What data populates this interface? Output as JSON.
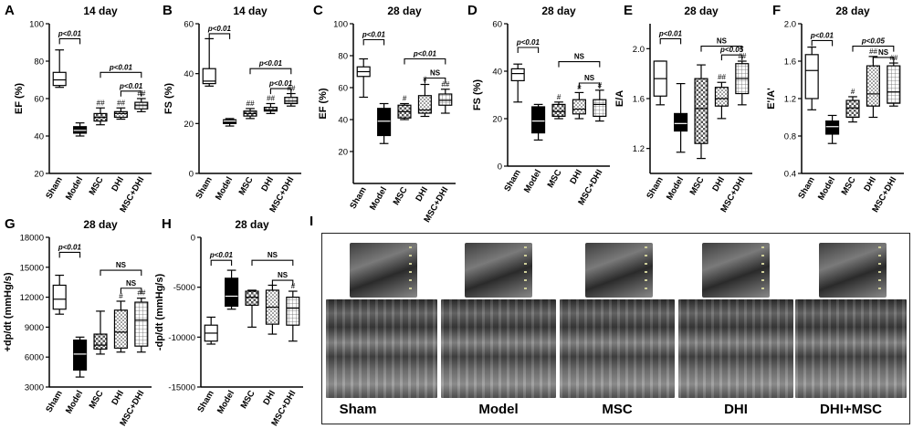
{
  "chart_data": [
    {
      "panel": "A",
      "title": "14 day",
      "type": "box",
      "ylabel": "EF (%)",
      "ylim": [
        20,
        100
      ],
      "yticks": [
        20,
        40,
        60,
        80,
        100
      ],
      "categories": [
        "Sham",
        "Model",
        "MSC",
        "DHI",
        "MSC+DHI"
      ],
      "boxes": [
        {
          "min": 66,
          "q1": 67,
          "median": 70,
          "q3": 74,
          "max": 86
        },
        {
          "min": 40,
          "q1": 41.5,
          "median": 43,
          "q3": 45,
          "max": 47
        },
        {
          "min": 46,
          "q1": 48,
          "median": 50,
          "q3": 52,
          "max": 55
        },
        {
          "min": 49,
          "q1": 50,
          "median": 52,
          "q3": 53,
          "max": 55
        },
        {
          "min": 53,
          "q1": 54.5,
          "median": 56.5,
          "q3": 58,
          "max": 60
        }
      ],
      "marks": [
        "",
        "",
        "##",
        "##",
        "##"
      ],
      "brackets": [
        {
          "from": 0,
          "to": 1,
          "y": 92,
          "label": "p<0.01"
        },
        {
          "from": 2,
          "to": 4,
          "y": 74,
          "label": "p<0.01"
        },
        {
          "from": 3,
          "to": 4,
          "y": 64,
          "label": "p<0.01"
        }
      ]
    },
    {
      "panel": "B",
      "title": "14 day",
      "type": "box",
      "ylabel": "FS (%)",
      "ylim": [
        0,
        60
      ],
      "yticks": [
        0,
        20,
        40,
        60
      ],
      "categories": [
        "Sham",
        "Model",
        "MSC",
        "DHI",
        "MSC+DHI"
      ],
      "boxes": [
        {
          "min": 35,
          "q1": 36,
          "median": 37,
          "q3": 42,
          "max": 54
        },
        {
          "min": 19,
          "q1": 20,
          "median": 21,
          "q3": 21.5,
          "max": 22
        },
        {
          "min": 22,
          "q1": 23,
          "median": 24,
          "q3": 25,
          "max": 26
        },
        {
          "min": 24,
          "q1": 25,
          "median": 25.5,
          "q3": 26.5,
          "max": 28
        },
        {
          "min": 27,
          "q1": 28,
          "median": 29,
          "q3": 30.5,
          "max": 32
        }
      ],
      "marks": [
        "",
        "",
        "##",
        "##",
        "##"
      ],
      "brackets": [
        {
          "from": 0,
          "to": 1,
          "y": 56,
          "label": "p<0.01"
        },
        {
          "from": 2,
          "to": 4,
          "y": 42,
          "label": "p<0.01"
        },
        {
          "from": 3,
          "to": 4,
          "y": 34,
          "label": "p<0.01"
        }
      ]
    },
    {
      "panel": "C",
      "title": "28 day",
      "type": "box",
      "ylabel": "EF (%)",
      "ylim": [
        0,
        100
      ],
      "yticks": [
        20,
        40,
        60,
        80,
        100
      ],
      "categories": [
        "Sham",
        "Model",
        "MSC",
        "DHI",
        "MSC+DHI"
      ],
      "boxes": [
        {
          "min": 54,
          "q1": 67,
          "median": 70,
          "q3": 73,
          "max": 78
        },
        {
          "min": 25,
          "q1": 30,
          "median": 39,
          "q3": 47,
          "max": 50
        },
        {
          "min": 40,
          "q1": 41,
          "median": 45,
          "q3": 49,
          "max": 50
        },
        {
          "min": 42,
          "q1": 44,
          "median": 46,
          "q3": 55,
          "max": 62
        },
        {
          "min": 44,
          "q1": 49,
          "median": 52,
          "q3": 56,
          "max": 59
        }
      ],
      "marks": [
        "",
        "",
        "#",
        "#",
        "##"
      ],
      "brackets": [
        {
          "from": 0,
          "to": 1,
          "y": 90,
          "label": "p<0.01"
        },
        {
          "from": 2,
          "to": 4,
          "y": 78,
          "label": "p<0.01"
        },
        {
          "from": 3,
          "to": 4,
          "y": 66,
          "label": "NS"
        }
      ]
    },
    {
      "panel": "D",
      "title": "28 day",
      "type": "box",
      "ylabel": "FS (%)",
      "ylim": [
        0,
        60
      ],
      "yticks": [
        0,
        20,
        40,
        60
      ],
      "categories": [
        "Sham",
        "Model",
        "MSC",
        "DHI",
        "MSC+DHI"
      ],
      "boxes": [
        {
          "min": 27,
          "q1": 36,
          "median": 39,
          "q3": 41,
          "max": 43
        },
        {
          "min": 11,
          "q1": 14,
          "median": 19,
          "q3": 25,
          "max": 26
        },
        {
          "min": 20,
          "q1": 21,
          "median": 23,
          "q3": 26,
          "max": 27
        },
        {
          "min": 20,
          "q1": 22,
          "median": 24,
          "q3": 28,
          "max": 31
        },
        {
          "min": 19,
          "q1": 21,
          "median": 26,
          "q3": 28,
          "max": 32
        }
      ],
      "marks": [
        "",
        "",
        "#",
        "#",
        "#"
      ],
      "brackets": [
        {
          "from": 0,
          "to": 1,
          "y": 50,
          "label": "p<0.01"
        },
        {
          "from": 2,
          "to": 4,
          "y": 44,
          "label": "NS"
        },
        {
          "from": 3,
          "to": 4,
          "y": 35,
          "label": "NS"
        }
      ]
    },
    {
      "panel": "E",
      "title": "28 day",
      "type": "box",
      "ylabel": "E/A",
      "ylim": [
        1.0,
        2.2
      ],
      "yticks": [
        1.2,
        1.6,
        2.0
      ],
      "categories": [
        "Sham",
        "Model",
        "MSC",
        "DHI",
        "MSC+DHI"
      ],
      "boxes": [
        {
          "min": 1.55,
          "q1": 1.62,
          "median": 1.76,
          "q3": 1.9,
          "max": 1.9
        },
        {
          "min": 1.17,
          "q1": 1.34,
          "median": 1.4,
          "q3": 1.48,
          "max": 1.72
        },
        {
          "min": 1.12,
          "q1": 1.24,
          "median": 1.52,
          "q3": 1.76,
          "max": 1.87
        },
        {
          "min": 1.44,
          "q1": 1.54,
          "median": 1.6,
          "q3": 1.69,
          "max": 1.73
        },
        {
          "min": 1.55,
          "q1": 1.64,
          "median": 1.76,
          "q3": 1.88,
          "max": 1.9
        }
      ],
      "marks": [
        "",
        "",
        "",
        "##",
        "##"
      ],
      "brackets": [
        {
          "from": 0,
          "to": 1,
          "y": 2.08,
          "label": "p<0.01"
        },
        {
          "from": 2,
          "to": 4,
          "y": 2.02,
          "label": "NS"
        },
        {
          "from": 3,
          "to": 4,
          "y": 1.95,
          "label": "p<0.05"
        }
      ]
    },
    {
      "panel": "F",
      "title": "28 day",
      "type": "box",
      "ylabel": "E'/A'",
      "ylim": [
        0.4,
        2.0
      ],
      "yticks": [
        0.4,
        0.8,
        1.2,
        1.6,
        2.0
      ],
      "categories": [
        "Sham",
        "Model",
        "MSC",
        "DHI",
        "MSC+DHI"
      ],
      "boxes": [
        {
          "min": 1.08,
          "q1": 1.2,
          "median": 1.5,
          "q3": 1.67,
          "max": 1.75
        },
        {
          "min": 0.72,
          "q1": 0.82,
          "median": 0.9,
          "q3": 0.96,
          "max": 1.02
        },
        {
          "min": 0.95,
          "q1": 1.0,
          "median": 1.1,
          "q3": 1.18,
          "max": 1.22
        },
        {
          "min": 1.0,
          "q1": 1.12,
          "median": 1.25,
          "q3": 1.55,
          "max": 1.65
        },
        {
          "min": 1.12,
          "q1": 1.15,
          "median": 1.27,
          "q3": 1.55,
          "max": 1.58
        }
      ],
      "marks": [
        "",
        "",
        "#",
        "##",
        "##"
      ],
      "brackets": [
        {
          "from": 0,
          "to": 1,
          "y": 1.82,
          "label": "p<0.01"
        },
        {
          "from": 2,
          "to": 4,
          "y": 1.76,
          "label": "p<0.05"
        },
        {
          "from": 3,
          "to": 4,
          "y": 1.64,
          "label": "NS"
        }
      ]
    },
    {
      "panel": "G",
      "title": "28 day",
      "type": "box",
      "ylabel": "+dp/dt (mmHg/s)",
      "ylim": [
        3000,
        18000
      ],
      "yticks": [
        3000,
        6000,
        9000,
        12000,
        15000,
        18000
      ],
      "categories": [
        "Sham",
        "Model",
        "MSC",
        "DHI",
        "MSC+DHI"
      ],
      "boxes": [
        {
          "min": 10300,
          "q1": 10800,
          "median": 11800,
          "q3": 13200,
          "max": 14200
        },
        {
          "min": 4000,
          "q1": 4700,
          "median": 6300,
          "q3": 7700,
          "max": 8000
        },
        {
          "min": 6300,
          "q1": 6800,
          "median": 7200,
          "q3": 8300,
          "max": 10600
        },
        {
          "min": 6500,
          "q1": 6900,
          "median": 8500,
          "q3": 10700,
          "max": 11600
        },
        {
          "min": 6500,
          "q1": 7100,
          "median": 9700,
          "q3": 11500,
          "max": 11900
        }
      ],
      "marks": [
        "",
        "",
        "",
        "#",
        "##"
      ],
      "brackets": [
        {
          "from": 0,
          "to": 1,
          "y": 16500,
          "label": "p<0.01"
        },
        {
          "from": 2,
          "to": 4,
          "y": 14700,
          "label": "NS"
        },
        {
          "from": 3,
          "to": 4,
          "y": 12900,
          "label": "NS"
        }
      ]
    },
    {
      "panel": "H",
      "title": "28 day",
      "type": "box",
      "ylabel": "-dp/dt (mmHg/s)",
      "ylim": [
        -15000,
        0
      ],
      "yticks": [
        -15000,
        -10000,
        -5000,
        0
      ],
      "categories": [
        "Sham",
        "Model",
        "MSC",
        "DHI",
        "MSC+DHI"
      ],
      "boxes": [
        {
          "min": -10700,
          "q1": -10400,
          "median": -9600,
          "q3": -8800,
          "max": -8000
        },
        {
          "min": -7200,
          "q1": -6900,
          "median": -5900,
          "q3": -4100,
          "max": -3300
        },
        {
          "min": -9000,
          "q1": -6800,
          "median": -6000,
          "q3": -5400,
          "max": -5300
        },
        {
          "min": -9700,
          "q1": -8700,
          "median": -7000,
          "q3": -5300,
          "max": -4800
        },
        {
          "min": -10400,
          "q1": -8800,
          "median": -7100,
          "q3": -6000,
          "max": -5400
        }
      ],
      "marks": [
        "",
        "",
        "",
        "",
        "#"
      ],
      "brackets": [
        {
          "from": 0,
          "to": 1,
          "y": -2300,
          "label": "p<0.01"
        },
        {
          "from": 2,
          "to": 4,
          "y": -2300,
          "label": "NS"
        },
        {
          "from": 3,
          "to": 4,
          "y": -4300,
          "label": "NS"
        }
      ]
    }
  ],
  "echo_panel": {
    "panel": "I",
    "labels": [
      "Sham",
      "Model",
      "MSC",
      "DHI",
      "DHI+MSC"
    ]
  },
  "colors": {
    "sham_fill": "#ffffff",
    "model_fill": "#000000",
    "msc_fill": "checker",
    "dhi_fill": "dots",
    "msc_dhi_fill": "grid",
    "line": "#000000"
  }
}
